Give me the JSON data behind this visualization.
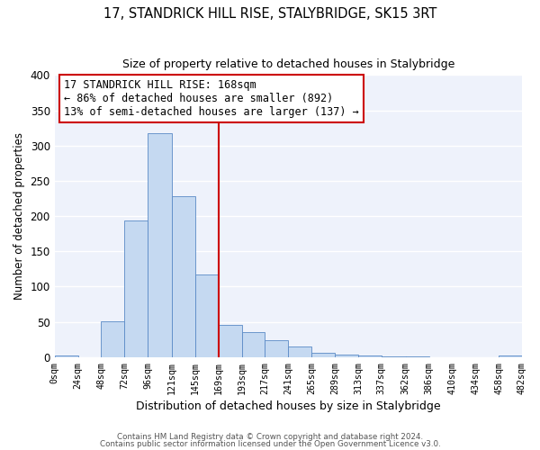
{
  "title": "17, STANDRICK HILL RISE, STALYBRIDGE, SK15 3RT",
  "subtitle": "Size of property relative to detached houses in Stalybridge",
  "xlabel": "Distribution of detached houses by size in Stalybridge",
  "ylabel": "Number of detached properties",
  "bar_color": "#c5d9f1",
  "bar_edge_color": "#5a8ac6",
  "background_color": "#eef2fb",
  "annotation_box_edge": "#cc0000",
  "vline_color": "#cc0000",
  "annotation_title": "17 STANDRICK HILL RISE: 168sqm",
  "annotation_line1": "← 86% of detached houses are smaller (892)",
  "annotation_line2": "13% of semi-detached houses are larger (137) →",
  "vline_x": 169,
  "tick_labels": [
    "0sqm",
    "24sqm",
    "48sqm",
    "72sqm",
    "96sqm",
    "121sqm",
    "145sqm",
    "169sqm",
    "193sqm",
    "217sqm",
    "241sqm",
    "265sqm",
    "289sqm",
    "313sqm",
    "337sqm",
    "362sqm",
    "386sqm",
    "410sqm",
    "434sqm",
    "458sqm",
    "482sqm"
  ],
  "bin_edges": [
    0,
    24,
    48,
    72,
    96,
    121,
    145,
    169,
    193,
    217,
    241,
    265,
    289,
    313,
    337,
    362,
    386,
    410,
    434,
    458,
    482
  ],
  "bar_heights": [
    2,
    0,
    51,
    194,
    317,
    228,
    117,
    45,
    35,
    24,
    15,
    6,
    4,
    2,
    1,
    1,
    0,
    0,
    0,
    2
  ],
  "ylim": [
    0,
    400
  ],
  "yticks": [
    0,
    50,
    100,
    150,
    200,
    250,
    300,
    350,
    400
  ],
  "footer1": "Contains HM Land Registry data © Crown copyright and database right 2024.",
  "footer2": "Contains public sector information licensed under the Open Government Licence v3.0."
}
